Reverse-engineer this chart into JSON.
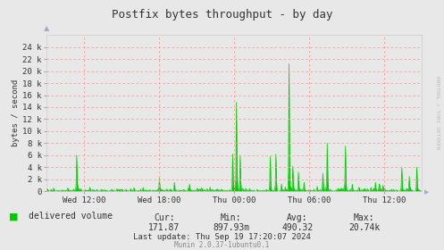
{
  "title": "Postfix bytes throughput - by day",
  "ylabel": "bytes / second",
  "background_color": "#e8e8e8",
  "plot_bg_color": "#e8e8e8",
  "grid_color": "#ff9999",
  "line_color": "#00cc00",
  "fill_color": "#00cc00",
  "x_tick_labels": [
    "Wed 12:00",
    "Wed 18:00",
    "Thu 00:00",
    "Thu 06:00",
    "Thu 12:00"
  ],
  "y_ticks": [
    0,
    2000,
    4000,
    6000,
    8000,
    10000,
    12000,
    14000,
    16000,
    18000,
    20000,
    22000,
    24000
  ],
  "y_tick_labels": [
    "0",
    "2 k",
    "4 k",
    "6 k",
    "8 k",
    "10 k",
    "12 k",
    "14 k",
    "16 k",
    "18 k",
    "20 k",
    "22 k",
    "24 k"
  ],
  "ylim": [
    0,
    26000
  ],
  "legend_label": "delivered volume",
  "legend_color": "#00cc00",
  "cur_label": "Cur:",
  "cur_value": "171.87",
  "min_label": "Min:",
  "min_value": "897.93m",
  "avg_label": "Avg:",
  "avg_value": "490.32",
  "max_label": "Max:",
  "max_value": "20.74k",
  "last_update": "Last update: Thu Sep 19 17:20:07 2024",
  "footer": "Munin 2.0.37-1ubuntu0.1",
  "rrdtool_label": "RRDTOOL / TOBI OETIKER",
  "n_points": 600
}
